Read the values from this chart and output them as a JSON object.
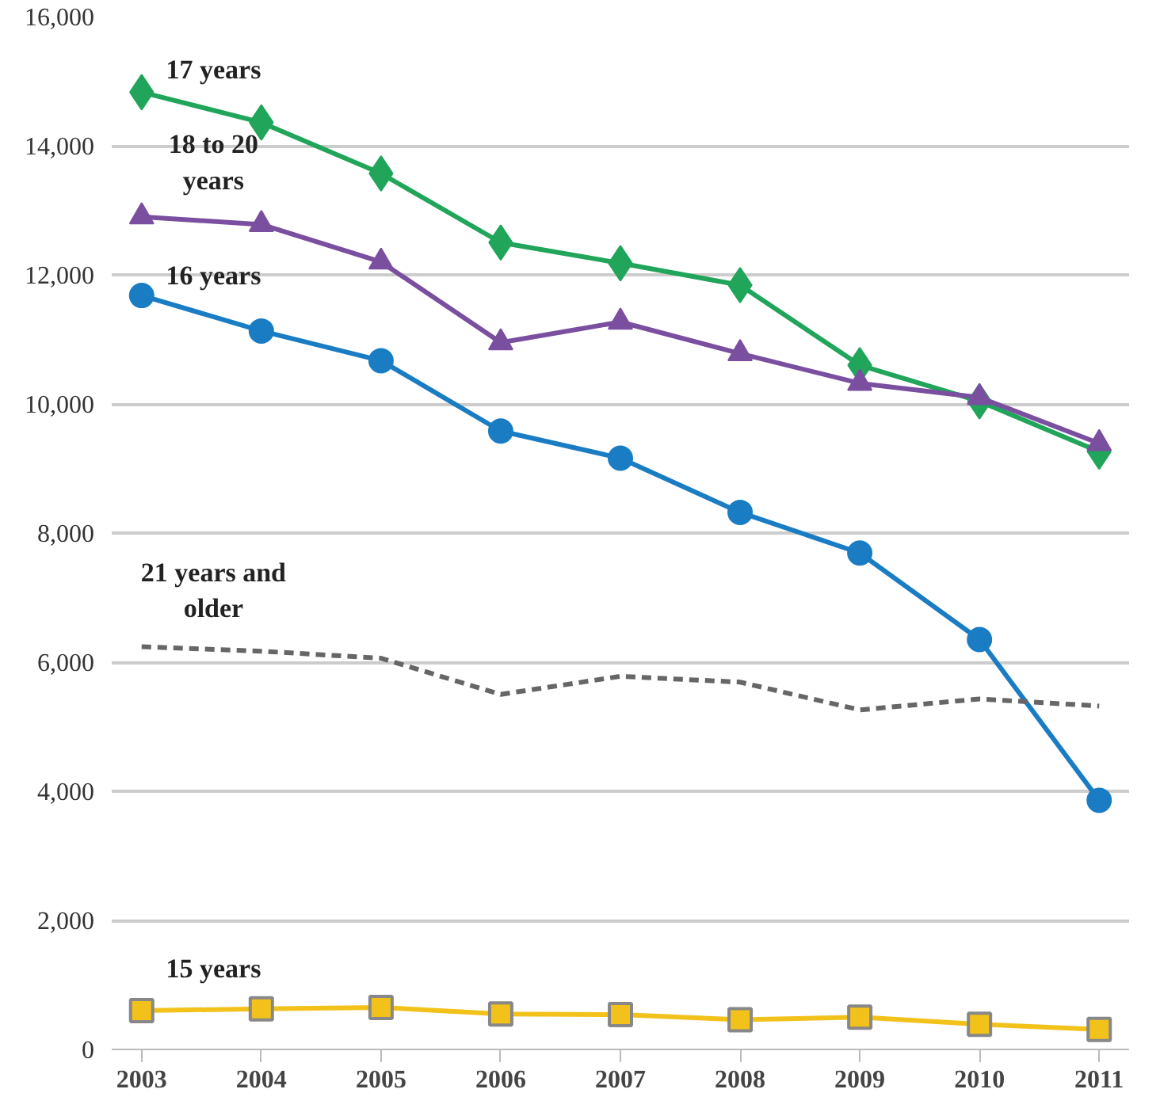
{
  "chart_data": {
    "type": "line",
    "categories": [
      "2003",
      "2004",
      "2005",
      "2006",
      "2007",
      "2008",
      "2009",
      "2010",
      "2011"
    ],
    "ylim": [
      0,
      16000
    ],
    "yticks": [
      {
        "value": 0,
        "label": "0"
      },
      {
        "value": 2000,
        "label": "2,000"
      },
      {
        "value": 4000,
        "label": "4,000"
      },
      {
        "value": 6000,
        "label": "6,000"
      },
      {
        "value": 8000,
        "label": "8,000"
      },
      {
        "value": 10000,
        "label": "10,000"
      },
      {
        "value": 12000,
        "label": "12,000"
      },
      {
        "value": 14000,
        "label": "14,000"
      },
      {
        "value": 16000,
        "label": "16,000"
      }
    ],
    "grid": "y",
    "series": [
      {
        "name": "17 years",
        "color": "#20a55a",
        "marker": "diamond",
        "line_style": "solid",
        "values": [
          14830,
          14360,
          13570,
          12500,
          12180,
          11840,
          10600,
          10040,
          9260
        ]
      },
      {
        "name": "18 to 20 years",
        "color": "#7b4fa0",
        "marker": "triangle",
        "line_style": "solid",
        "values": [
          12900,
          12780,
          12200,
          10950,
          11270,
          10780,
          10320,
          10100,
          9390
        ]
      },
      {
        "name": "16 years",
        "color": "#1a7dc4",
        "marker": "circle",
        "line_style": "solid",
        "values": [
          11680,
          11130,
          10670,
          9580,
          9160,
          8320,
          7690,
          6350,
          3860
        ]
      },
      {
        "name": "21 years and older",
        "color": "#666666",
        "marker": "none",
        "line_style": "dashed",
        "values": [
          6240,
          6170,
          6060,
          5500,
          5780,
          5690,
          5260,
          5430,
          5320
        ]
      },
      {
        "name": "15 years",
        "color": "#f2c21b",
        "marker": "square",
        "line_style": "solid",
        "values": [
          600,
          630,
          650,
          550,
          540,
          460,
          500,
          390,
          310
        ]
      }
    ]
  }
}
